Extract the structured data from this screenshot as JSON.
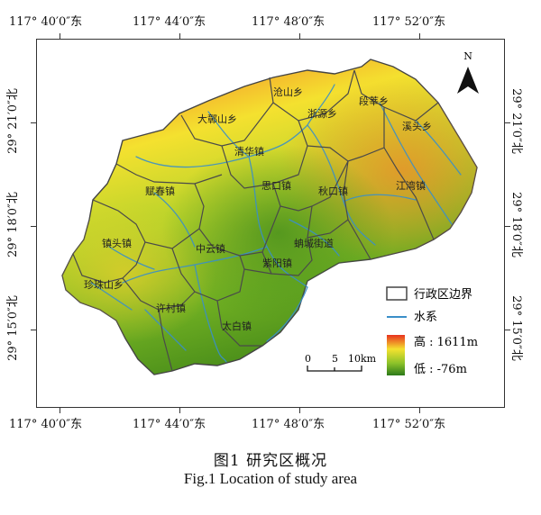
{
  "coords": {
    "top": [
      "117° 40′0″东",
      "117° 44′0″东",
      "117° 48′0″东",
      "117° 52′0″东"
    ],
    "bottom": [
      "117° 40′0″东",
      "117° 44′0″东",
      "117° 48′0″东",
      "117° 52′0″东"
    ],
    "left": [
      "29° 21′0″北",
      "29° 18′0″北",
      "29° 15′0″北"
    ],
    "right": [
      "29° 21′0″北",
      "29° 18′0″北",
      "29° 15′0″北"
    ]
  },
  "towns": [
    "沧山乡",
    "段莘乡",
    "大鄣山乡",
    "浙源乡",
    "溪头乡",
    "清华镇",
    "思口镇",
    "秋口镇",
    "江湾镇",
    "赋春镇",
    "中云镇",
    "蚺城街道",
    "紫阳镇",
    "镇头镇",
    "珍珠山乡",
    "许村镇",
    "太白镇"
  ],
  "north": "N",
  "legend": {
    "boundary": "行政区边界",
    "water": "水系",
    "high": "高 : 1611m",
    "low": "低 : -76m"
  },
  "scalebar": {
    "zero": "0",
    "mid": "5",
    "end": "10km"
  },
  "caption": {
    "cn": "图1   研究区概况",
    "en": "Fig.1    Location of study area"
  },
  "colors": {
    "high": "#e8321e",
    "mid": "#f5e62a",
    "low": "#2c7a1a",
    "water": "#3a8fc8",
    "boundary": "#4a4a4a"
  }
}
